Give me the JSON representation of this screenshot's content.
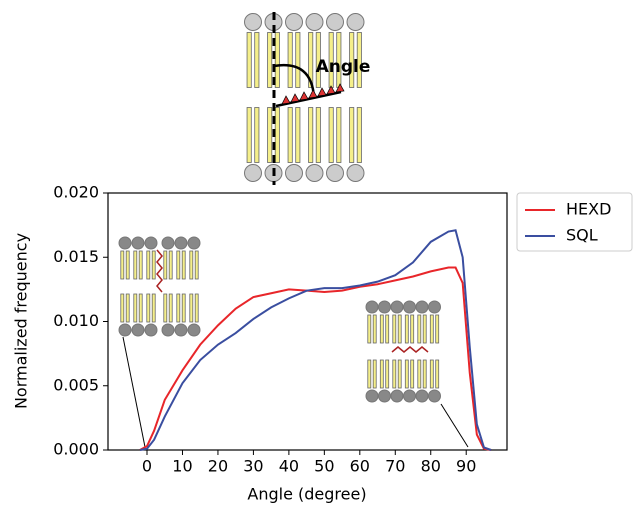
{
  "chart_data": {
    "type": "line",
    "annotations": [
      "Angle"
    ],
    "x_label": "Angle (degree)",
    "y_label": "Normalized frequency",
    "x": [
      -2,
      0,
      2,
      5,
      10,
      15,
      20,
      25,
      30,
      35,
      40,
      45,
      50,
      55,
      60,
      65,
      70,
      75,
      80,
      85,
      87,
      89,
      91,
      93,
      95,
      97
    ],
    "series": [
      {
        "name": "HEXD",
        "color": "#e8262a",
        "values": [
          0,
          0.0003,
          0.0015,
          0.0039,
          0.0062,
          0.0082,
          0.0097,
          0.011,
          0.0119,
          0.0122,
          0.0125,
          0.0124,
          0.0123,
          0.0124,
          0.0127,
          0.0129,
          0.0132,
          0.0135,
          0.0139,
          0.0142,
          0.0142,
          0.013,
          0.006,
          0.0012,
          0.0001,
          0
        ]
      },
      {
        "name": "SQL",
        "color": "#3a4ea0",
        "values": [
          0,
          0.0001,
          0.0008,
          0.0026,
          0.0052,
          0.007,
          0.0082,
          0.0091,
          0.0102,
          0.0111,
          0.0118,
          0.0124,
          0.0126,
          0.0126,
          0.0128,
          0.0131,
          0.0136,
          0.0146,
          0.0162,
          0.017,
          0.0171,
          0.015,
          0.008,
          0.002,
          0.0002,
          0
        ]
      }
    ],
    "xlim": [
      -11,
      101.5
    ],
    "ylim": [
      0,
      0.02
    ],
    "xticks": [
      0,
      10,
      20,
      30,
      40,
      50,
      60,
      70,
      80,
      90
    ],
    "yticks": [
      {
        "value": 0,
        "label": "0.000"
      },
      {
        "value": 0.005,
        "label": "0.005"
      },
      {
        "value": 0.01,
        "label": "0.010"
      },
      {
        "value": 0.015,
        "label": "0.015"
      },
      {
        "value": 0.02,
        "label": "0.020"
      }
    ],
    "legend": "outside-upper-right"
  }
}
